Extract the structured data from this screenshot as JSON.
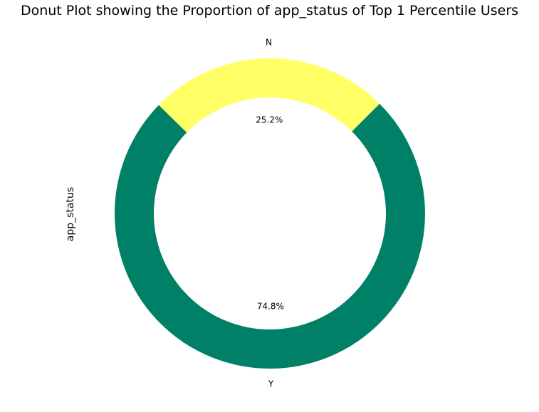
{
  "chart_data": {
    "type": "pie",
    "variant": "donut",
    "title": "Donut Plot showing the Proportion of app_status of Top 1 Percentile Users",
    "ylabel": "app_status",
    "categories": [
      "N",
      "Y"
    ],
    "values": [
      25.2,
      74.8
    ],
    "value_labels": [
      "25.2%",
      "74.8%"
    ],
    "colors": [
      "#ffff66",
      "#008066"
    ],
    "legend": "none"
  }
}
